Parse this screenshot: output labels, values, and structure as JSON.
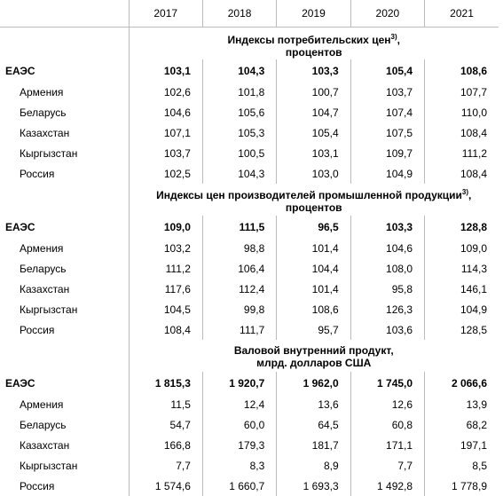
{
  "table": {
    "years": [
      "2017",
      "2018",
      "2019",
      "2020",
      "2021"
    ],
    "sections": [
      {
        "title": "Индексы потребительских цен",
        "note": "3)",
        "title_end": ",",
        "subtitle": "процентов",
        "rows": [
          {
            "name": "ЕАЭС",
            "values": [
              "103,1",
              "104,3",
              "103,3",
              "105,4",
              "108,6"
            ]
          },
          {
            "name": "Армения",
            "values": [
              "102,6",
              "101,8",
              "100,7",
              "103,7",
              "107,7"
            ]
          },
          {
            "name": "Беларусь",
            "values": [
              "104,6",
              "105,6",
              "104,7",
              "107,4",
              "110,0"
            ]
          },
          {
            "name": "Казахстан",
            "values": [
              "107,1",
              "105,3",
              "105,4",
              "107,5",
              "108,4"
            ]
          },
          {
            "name": "Кыргызстан",
            "values": [
              "103,7",
              "100,5",
              "103,1",
              "109,7",
              "111,2"
            ]
          },
          {
            "name": "Россия",
            "values": [
              "102,5",
              "104,3",
              "103,0",
              "104,9",
              "108,4"
            ]
          }
        ]
      },
      {
        "title": "Индексы цен производителей промышленной продукции",
        "note": "3)",
        "title_end": ",",
        "subtitle": "процентов",
        "rows": [
          {
            "name": "ЕАЭС",
            "values": [
              "109,0",
              "111,5",
              "96,5",
              "103,3",
              "128,8"
            ]
          },
          {
            "name": "Армения",
            "values": [
              "103,2",
              "98,8",
              "101,4",
              "104,6",
              "109,0"
            ]
          },
          {
            "name": "Беларусь",
            "values": [
              "111,2",
              "106,4",
              "104,4",
              "108,0",
              "114,3"
            ]
          },
          {
            "name": "Казахстан",
            "values": [
              "117,6",
              "112,4",
              "101,4",
              "95,8",
              "146,1"
            ]
          },
          {
            "name": "Кыргызстан",
            "values": [
              "104,5",
              "99,8",
              "108,6",
              "126,3",
              "104,9"
            ]
          },
          {
            "name": "Россия",
            "values": [
              "108,4",
              "111,7",
              "95,7",
              "103,6",
              "128,5"
            ]
          }
        ]
      },
      {
        "title": "Валовой внутренний продукт,",
        "subtitle": "млрд. долларов США",
        "rows": [
          {
            "name": "ЕАЭС",
            "values": [
              "1 815,3",
              "1 920,7",
              "1 962,0",
              "1 745,0",
              "2 066,6"
            ]
          },
          {
            "name": "Армения",
            "values": [
              "11,5",
              "12,4",
              "13,6",
              "12,6",
              "13,9"
            ]
          },
          {
            "name": "Беларусь",
            "values": [
              "54,7",
              "60,0",
              "64,5",
              "60,8",
              "68,2"
            ]
          },
          {
            "name": "Казахстан",
            "values": [
              "166,8",
              "179,3",
              "181,7",
              "171,1",
              "197,1"
            ]
          },
          {
            "name": "Кыргызстан",
            "values": [
              "7,7",
              "8,3",
              "8,9",
              "7,7",
              "8,5"
            ]
          },
          {
            "name": "Россия",
            "values": [
              "1 574,6",
              "1 660,7",
              "1 693,3",
              "1 492,8",
              "1 778,9"
            ]
          }
        ]
      }
    ]
  }
}
